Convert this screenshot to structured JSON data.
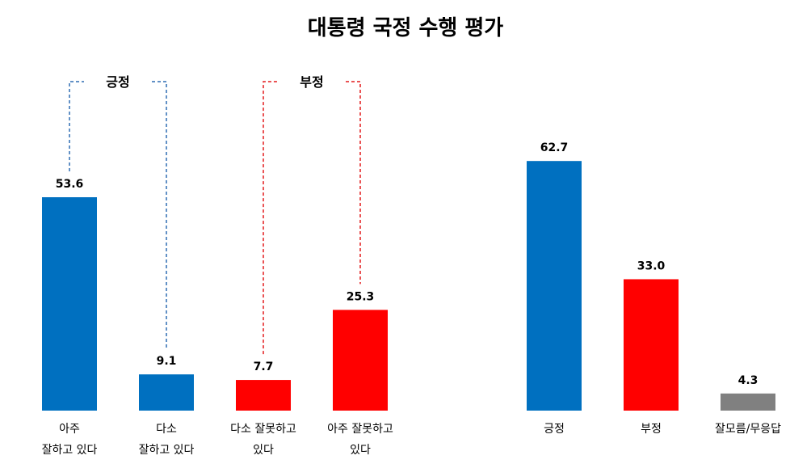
{
  "title": "대통령 국정 수행 평가",
  "colors": {
    "positive": "#0070C0",
    "negative": "#FF0000",
    "neutral": "#808080"
  },
  "chart_data": [
    {
      "type": "bar",
      "categories": [
        [
          "아주",
          "잘하고 있다"
        ],
        [
          "다소",
          "잘하고 있다"
        ],
        [
          "다소 잘못하고",
          "있다"
        ],
        [
          "아주 잘못하고",
          "있다"
        ]
      ],
      "values": [
        53.6,
        9.1,
        7.7,
        25.3
      ],
      "bar_colors": [
        "#0070C0",
        "#0070C0",
        "#FF0000",
        "#FF0000"
      ],
      "groups": [
        {
          "label": "긍정",
          "members": [
            0,
            1
          ],
          "color": "#2E6DB4"
        },
        {
          "label": "부정",
          "members": [
            2,
            3
          ],
          "color": "#E31A1C"
        }
      ]
    },
    {
      "type": "bar",
      "categories": [
        [
          "긍정"
        ],
        [
          "부정"
        ],
        [
          "잘모름/무응답"
        ]
      ],
      "values": [
        62.7,
        33.0,
        4.3
      ],
      "bar_colors": [
        "#0070C0",
        "#FF0000",
        "#808080"
      ]
    }
  ]
}
